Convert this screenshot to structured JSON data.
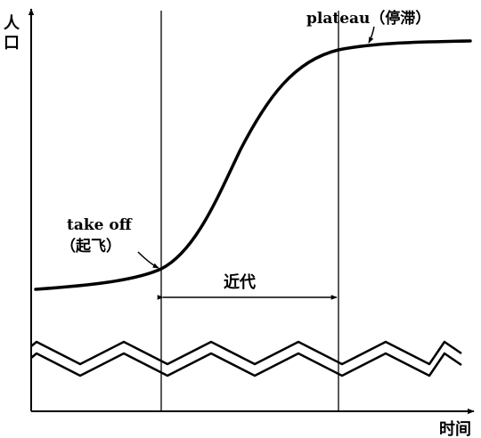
{
  "axes": {
    "y_label_line1": "人",
    "y_label_line2": "口",
    "x_label": "时间"
  },
  "labels": {
    "plateau": "plateau（停滞）",
    "takeoff_line1": "take off",
    "takeoff_line2": "（起飞）",
    "modern": "近代"
  },
  "colors": {
    "ink": "#000000",
    "background": "#ffffff"
  }
}
